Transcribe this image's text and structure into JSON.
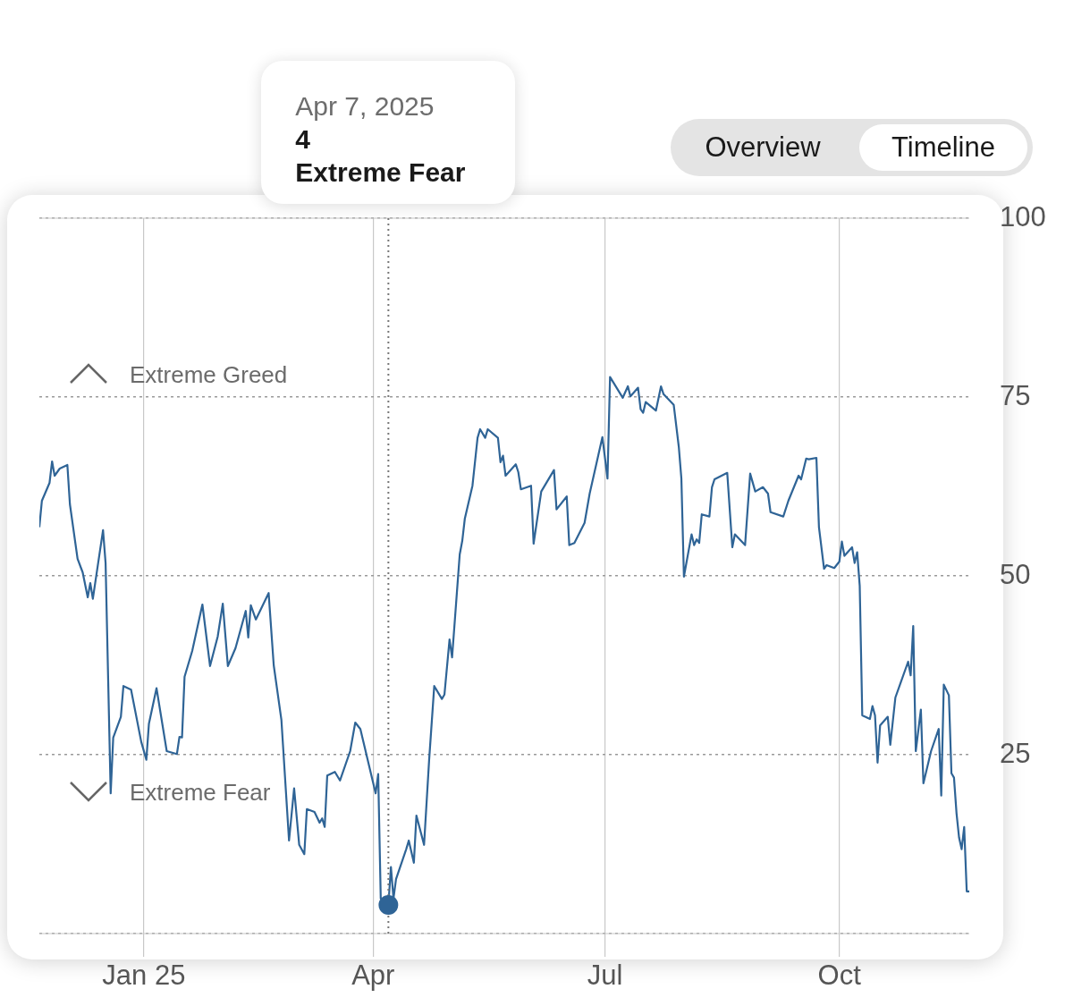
{
  "chart_data": {
    "type": "line",
    "xlim": [
      "2024-11-21",
      "2025-11-21"
    ],
    "xticks": [
      {
        "value": "2025-01-01",
        "label": "Jan 25"
      },
      {
        "value": "2025-04-01",
        "label": "Apr"
      },
      {
        "value": "2025-07-01",
        "label": "Jul"
      },
      {
        "value": "2025-10-01",
        "label": "Oct"
      }
    ],
    "ylim": [
      0,
      100
    ],
    "yticks": [
      {
        "value": 0,
        "label": null
      },
      25,
      50,
      75,
      100
    ],
    "grid": true,
    "legend": false,
    "marker": "none",
    "line_style": "solid",
    "x": [
      "2024-11-21",
      "2024-11-22",
      "2024-11-25",
      "2024-11-26",
      "2024-11-27",
      "2024-11-29",
      "2024-12-02",
      "2024-12-03",
      "2024-12-06",
      "2024-12-08",
      "2024-12-10",
      "2024-12-11",
      "2024-12-12",
      "2024-12-16",
      "2024-12-17",
      "2024-12-19",
      "2024-12-20",
      "2024-12-23",
      "2024-12-24",
      "2024-12-27",
      "2024-12-31",
      "2025-01-02",
      "2025-01-03",
      "2025-01-06",
      "2025-01-10",
      "2025-01-14",
      "2025-01-15",
      "2025-01-16",
      "2025-01-17",
      "2025-01-20",
      "2025-01-24",
      "2025-01-27",
      "2025-01-30",
      "2025-02-01",
      "2025-02-03",
      "2025-02-06",
      "2025-02-10",
      "2025-02-11",
      "2025-02-12",
      "2025-02-14",
      "2025-02-19",
      "2025-02-21",
      "2025-02-24",
      "2025-02-27",
      "2025-03-01",
      "2025-03-03",
      "2025-03-05",
      "2025-03-06",
      "2025-03-09",
      "2025-03-11",
      "2025-03-12",
      "2025-03-13",
      "2025-03-14",
      "2025-03-17",
      "2025-03-19",
      "2025-03-23",
      "2025-03-25",
      "2025-03-27",
      "2025-04-02",
      "2025-04-03",
      "2025-04-04",
      "2025-04-07",
      "2025-04-08",
      "2025-04-09",
      "2025-04-10",
      "2025-04-14",
      "2025-04-15",
      "2025-04-17",
      "2025-04-18",
      "2025-04-21",
      "2025-04-23",
      "2025-04-25",
      "2025-04-28",
      "2025-04-29",
      "2025-05-01",
      "2025-05-02",
      "2025-05-05",
      "2025-05-06",
      "2025-05-07",
      "2025-05-10",
      "2025-05-12",
      "2025-05-13",
      "2025-05-15",
      "2025-05-16",
      "2025-05-20",
      "2025-05-21",
      "2025-05-22",
      "2025-05-23",
      "2025-05-27",
      "2025-05-28",
      "2025-05-29",
      "2025-06-02",
      "2025-06-03",
      "2025-06-06",
      "2025-06-11",
      "2025-06-12",
      "2025-06-16",
      "2025-06-17",
      "2025-06-19",
      "2025-06-23",
      "2025-06-25",
      "2025-06-30",
      "2025-07-02",
      "2025-07-03",
      "2025-07-08",
      "2025-07-10",
      "2025-07-11",
      "2025-07-14",
      "2025-07-15",
      "2025-07-16",
      "2025-07-17",
      "2025-07-21",
      "2025-07-23",
      "2025-07-24",
      "2025-07-28",
      "2025-07-30",
      "2025-07-31",
      "2025-08-01",
      "2025-08-04",
      "2025-08-05",
      "2025-08-06",
      "2025-08-07",
      "2025-08-08",
      "2025-08-11",
      "2025-08-12",
      "2025-08-13",
      "2025-08-18",
      "2025-08-20",
      "2025-08-21",
      "2025-08-25",
      "2025-08-27",
      "2025-08-29",
      "2025-09-01",
      "2025-09-03",
      "2025-09-04",
      "2025-09-09",
      "2025-09-11",
      "2025-09-15",
      "2025-09-16",
      "2025-09-18",
      "2025-09-19",
      "2025-09-22",
      "2025-09-23",
      "2025-09-25",
      "2025-09-26",
      "2025-09-29",
      "2025-10-01",
      "2025-10-02",
      "2025-10-03",
      "2025-10-06",
      "2025-10-07",
      "2025-10-08",
      "2025-10-09",
      "2025-10-10",
      "2025-10-13",
      "2025-10-14",
      "2025-10-15",
      "2025-10-16",
      "2025-10-17",
      "2025-10-20",
      "2025-10-21",
      "2025-10-23",
      "2025-10-28",
      "2025-10-29",
      "2025-10-30",
      "2025-10-31",
      "2025-11-02",
      "2025-11-03",
      "2025-11-06",
      "2025-11-09",
      "2025-11-10",
      "2025-11-11",
      "2025-11-13",
      "2025-11-14",
      "2025-11-15",
      "2025-11-16",
      "2025-11-17",
      "2025-11-18",
      "2025-11-19",
      "2025-11-20",
      "2025-11-21"
    ],
    "series": [
      {
        "color": "#2f6496",
        "values": [
          56.8,
          60.5,
          63,
          66,
          64,
          65,
          65.5,
          60,
          52.4,
          50.5,
          47,
          49,
          46.8,
          56.4,
          51.8,
          19.6,
          27.4,
          30.3,
          34.6,
          34.1,
          26.8,
          24.3,
          29.3,
          34.3,
          25.5,
          25.1,
          27.5,
          27.4,
          35.9,
          39.5,
          46,
          37.4,
          41.5,
          46.1,
          37.4,
          39.9,
          45.1,
          41.4,
          45.9,
          43.9,
          47.6,
          37.5,
          29.9,
          13,
          20.3,
          12.4,
          11.1,
          17.4,
          17,
          15.5,
          16.1,
          14.9,
          22.1,
          22.6,
          21.4,
          25.5,
          29.5,
          28.6,
          19.6,
          22.3,
          4.9,
          4,
          9.3,
          4.9,
          7.6,
          11.8,
          13,
          9.9,
          16.5,
          12.4,
          24.3,
          34.6,
          32.8,
          33.4,
          41.1,
          38.6,
          53,
          54.9,
          58,
          62.6,
          69.3,
          70.5,
          69.3,
          70.5,
          69.3,
          65.9,
          66.8,
          64,
          65.6,
          64.5,
          62.1,
          62.6,
          54.5,
          61.8,
          64.8,
          59.3,
          61.1,
          54.3,
          54.6,
          57.4,
          61.5,
          69.4,
          63.6,
          77.8,
          74.9,
          76.5,
          75.1,
          76.3,
          73.3,
          72.8,
          74.3,
          73.1,
          76.5,
          75.4,
          73.9,
          68,
          63.6,
          49.9,
          55.8,
          54.3,
          55.1,
          54.6,
          58.6,
          58.3,
          62.4,
          63.5,
          64.4,
          54,
          55.8,
          54.3,
          64.3,
          61.8,
          62.4,
          61.5,
          58.9,
          58.3,
          60.5,
          64,
          63.5,
          66.4,
          66.3,
          66.5,
          56.8,
          51,
          51.5,
          51.1,
          52,
          54.8,
          52.8,
          54,
          51.8,
          53.3,
          48.6,
          30.5,
          30,
          31.8,
          30.5,
          23.9,
          29.1,
          30.3,
          26.4,
          33,
          38,
          36.1,
          43,
          25.5,
          31.3,
          21,
          25.5,
          28.6,
          19.3,
          34.8,
          33.3,
          22.4,
          21.8,
          16.8,
          13.4,
          11.8,
          14.9,
          5.9,
          5.9
        ]
      }
    ],
    "ref_lines": [
      {
        "axis": "x",
        "value": "2025-04-07",
        "line_style": "dotted",
        "color": "#777777"
      }
    ],
    "annotations": [
      "Apr 7, 2025\n4\nExtreme Fear",
      "Extreme Greed",
      "Extreme Fear",
      "Overview",
      "Timeline"
    ]
  }
}
